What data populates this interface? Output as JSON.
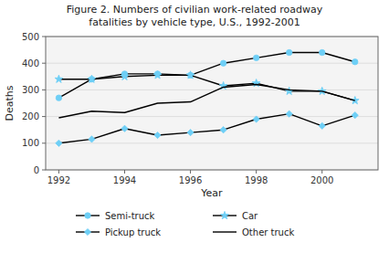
{
  "chart_data": {
    "type": "line",
    "title": "Figure 2.  Numbers of civilian work-related roadway",
    "subtitle": "fatalities by vehicle type, U.S., 1992-2001",
    "x_label": "Year",
    "y_label": "Deaths",
    "x": [
      1992,
      1993,
      1994,
      1995,
      1996,
      1997,
      1998,
      1999,
      2000,
      2001
    ],
    "color": "#6ecff6",
    "series": [
      {
        "name": "Semi-truck",
        "color": "#000000",
        "marker": "circle",
        "values": [
          270,
          340,
          360,
          360,
          355,
          400,
          420,
          440,
          440,
          405
        ]
      },
      {
        "name": "Car",
        "color": "#000000",
        "marker": "star",
        "values": [
          340,
          340,
          350,
          355,
          355,
          315,
          325,
          295,
          295,
          260
        ]
      },
      {
        "name": "Pickup truck",
        "color": "#000000",
        "marker": "diamond",
        "values": [
          100,
          115,
          155,
          130,
          140,
          150,
          190,
          210,
          165,
          205
        ]
      },
      {
        "name": "Other truck",
        "color": "#000000",
        "marker": "none",
        "values": [
          195,
          220,
          215,
          250,
          255,
          310,
          320,
          300,
          295,
          260
        ]
      }
    ],
    "xlim": [
      1991.6,
      2001.7
    ],
    "xticks": [
      1992,
      1994,
      1996,
      1998,
      2000
    ],
    "ylim": [
      0,
      500
    ],
    "yticks": [
      0,
      100,
      200,
      300,
      400,
      500
    ],
    "grid": true,
    "legend": "bottom"
  }
}
